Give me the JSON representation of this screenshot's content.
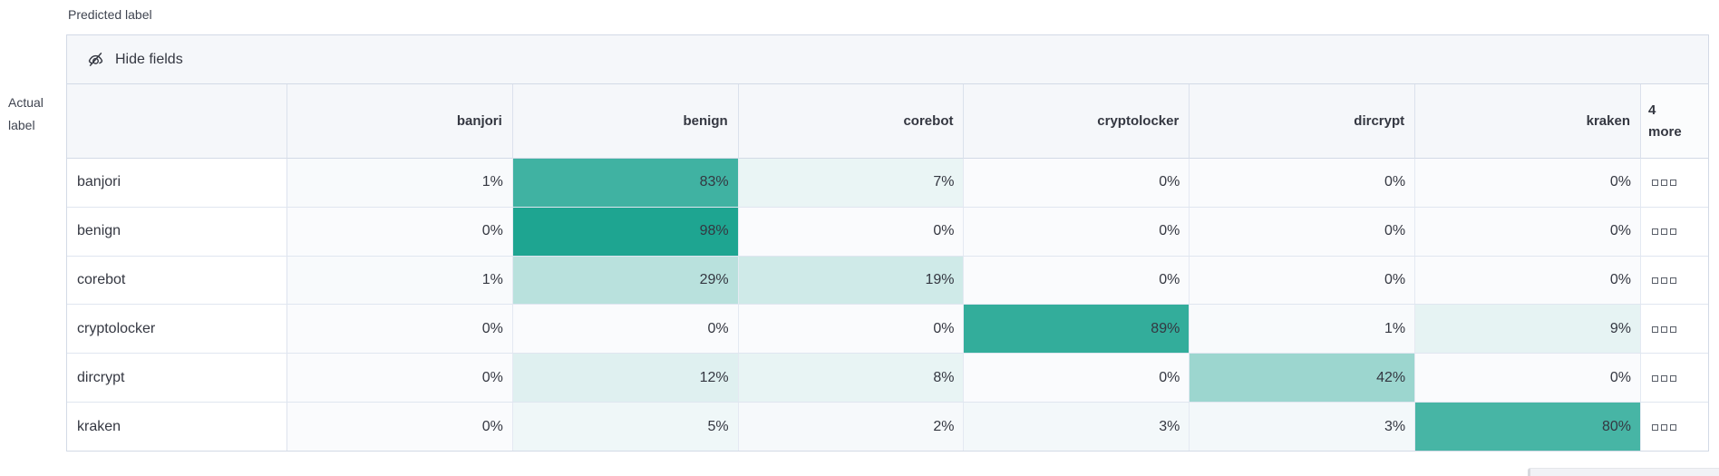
{
  "axis": {
    "predicted_label": "Predicted label",
    "actual_label": "Actual label"
  },
  "toolbar": {
    "hide_fields_label": "Hide fields",
    "icon": "eye-closed-icon"
  },
  "chart_data": {
    "type": "heatmap",
    "xlabel": "Predicted label",
    "ylabel": "Actual label",
    "columns": [
      "banjori",
      "benign",
      "corebot",
      "cryptolocker",
      "dircrypt",
      "kraken"
    ],
    "more_column_label": "4 more",
    "rows": [
      "banjori",
      "benign",
      "corebot",
      "cryptolocker",
      "dircrypt",
      "kraken"
    ],
    "unit": "%",
    "values_percent": [
      [
        1,
        83,
        7,
        0,
        0,
        0
      ],
      [
        0,
        98,
        0,
        0,
        0,
        0
      ],
      [
        1,
        29,
        19,
        0,
        0,
        0
      ],
      [
        0,
        0,
        0,
        89,
        1,
        9
      ],
      [
        0,
        12,
        8,
        0,
        42,
        0
      ],
      [
        0,
        5,
        2,
        3,
        3,
        80
      ]
    ],
    "more_cell_icon": "boxes-horizontal-icon",
    "color_scale": {
      "base": "#1aa38f",
      "zero_background": "#fafbfd"
    },
    "legend": "none",
    "grid": true
  },
  "colors": {
    "toolbar_bg": "#f5f7fa",
    "header_bg": "#f5f7fa",
    "border_outer": "#d3dae6",
    "border_inner": "#e0e6f0",
    "text": "#343741"
  }
}
